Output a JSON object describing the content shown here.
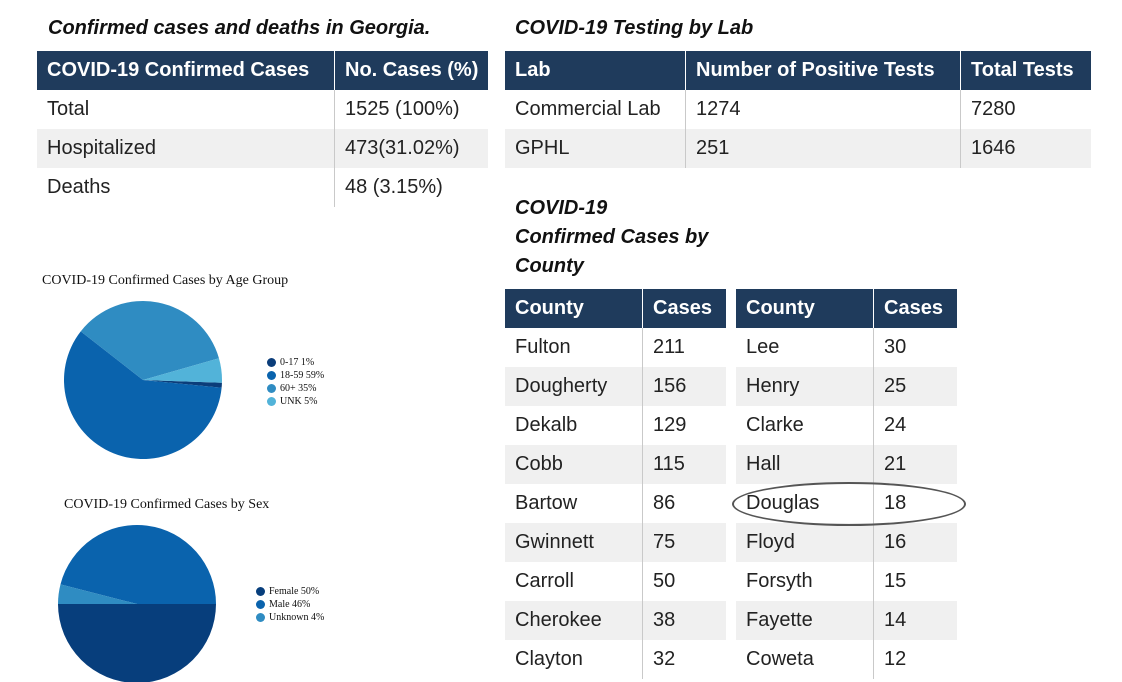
{
  "summary": {
    "heading": "Confirmed cases and deaths in Georgia.",
    "columns": [
      "COVID-19 Confirmed Cases",
      "No. Cases (%)"
    ],
    "rows": [
      [
        "Total",
        "1525 (100%)"
      ],
      [
        "Hospitalized",
        "473(31.02%)"
      ],
      [
        "Deaths",
        "48 (3.15%)"
      ]
    ]
  },
  "lab": {
    "heading": "COVID-19 Testing by Lab",
    "columns": [
      "Lab",
      "Number of Positive Tests",
      "Total Tests"
    ],
    "rows": [
      [
        "Commercial Lab",
        "1274",
        "7280"
      ],
      [
        "GPHL",
        "251",
        "1646"
      ]
    ]
  },
  "county": {
    "heading_lines": [
      "COVID-19",
      "Confirmed Cases by",
      "County"
    ],
    "columns": [
      "County",
      "Cases"
    ],
    "left_rows": [
      [
        "Fulton",
        "211"
      ],
      [
        "Dougherty",
        "156"
      ],
      [
        "Dekalb",
        "129"
      ],
      [
        "Cobb",
        "115"
      ],
      [
        "Bartow",
        "86"
      ],
      [
        "Gwinnett",
        "75"
      ],
      [
        "Carroll",
        "50"
      ],
      [
        "Cherokee",
        "38"
      ],
      [
        "Clayton",
        "32"
      ]
    ],
    "right_rows": [
      [
        "Lee",
        "30"
      ],
      [
        "Henry",
        "25"
      ],
      [
        "Clarke",
        "24"
      ],
      [
        "Hall",
        "21"
      ],
      [
        "Douglas",
        "18"
      ],
      [
        "Floyd",
        "16"
      ],
      [
        "Forsyth",
        "15"
      ],
      [
        "Fayette",
        "14"
      ],
      [
        "Coweta",
        "12"
      ]
    ],
    "highlighted": "Douglas"
  },
  "chart_data": [
    {
      "type": "pie",
      "title": "COVID-19 Confirmed Cases by Age Group",
      "legend_position": "right",
      "categories": [
        "0-17",
        "18-59",
        "60+",
        "UNK"
      ],
      "values": [
        1,
        59,
        35,
        5
      ],
      "labels": [
        "0-17 1%",
        "18-59 59%",
        "60+ 35%",
        "UNK 5%"
      ],
      "colors": [
        "#0b3d7a",
        "#0a63ad",
        "#2f8cc2",
        "#52b3d9"
      ]
    },
    {
      "type": "pie",
      "title": "COVID-19 Confirmed Cases by Sex",
      "legend_position": "right",
      "categories": [
        "Female",
        "Male",
        "Unknown"
      ],
      "values": [
        50,
        46,
        4
      ],
      "labels": [
        "Female 50%",
        "Male 46%",
        "Unknown 4%"
      ],
      "colors": [
        "#073e7c",
        "#0a63ad",
        "#2f8cc2"
      ]
    }
  ]
}
